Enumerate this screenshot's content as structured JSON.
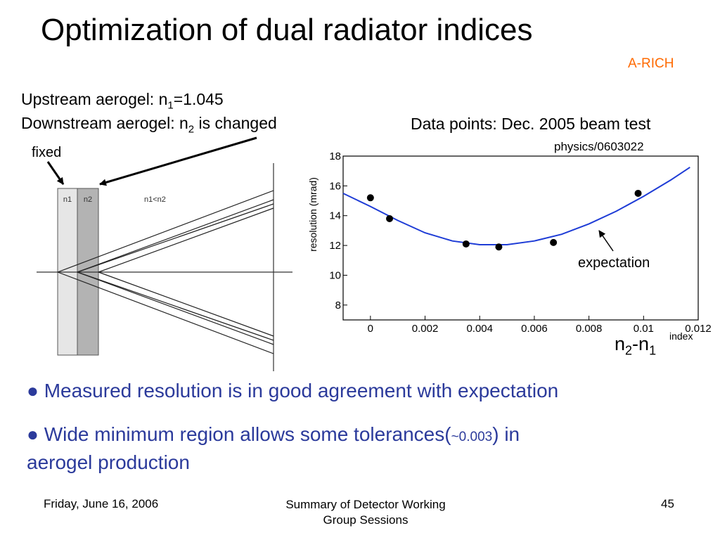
{
  "slide": {
    "title": "Optimization of dual radiator indices",
    "tag": "A-RICH",
    "upstream_prefix": "Upstream aerogel: n",
    "upstream_sub": "1",
    "upstream_value": "=1.045",
    "downstream_prefix": "Downstream aerogel: n",
    "downstream_sub": "2",
    "downstream_suffix": " is changed",
    "data_points": "Data points: Dec. 2005 beam test",
    "arxiv": "physics/0603022",
    "fixed": "fixed",
    "diagram": {
      "n1": "n1",
      "n2": "n2",
      "relation": "n1<n2"
    },
    "axis_n_label": {
      "a": "n",
      "a_sub": "2",
      "b": "-n",
      "b_sub": "1"
    },
    "bullets": {
      "b1": "Measured resolution is in good agreement with expectation",
      "b2_start": "Wide minimum region allows some tolerances(",
      "b2_small": "~0.003",
      "b2_end": ") in",
      "b2_cont": "aerogel production",
      "marker": "●"
    },
    "footer": {
      "date": "Friday, June 16, 2006",
      "center_line1": "Summary of Detector Working",
      "center_line2": "Group  Sessions",
      "page": "45"
    },
    "colors": {
      "bullet_text": "#2b3a9b",
      "tag": "#ff6a00",
      "curve": "#1e3cd6"
    }
  },
  "chart_data": {
    "type": "scatter",
    "xlabel": "index",
    "ylabel": "resolution (mrad)",
    "xlim": [
      -0.001,
      0.012
    ],
    "ylim": [
      7,
      18
    ],
    "xticks": [
      "0",
      "0.002",
      "0.004",
      "0.006",
      "0.008",
      "0.01",
      "0.012"
    ],
    "xtick_values": [
      0,
      0.002,
      0.004,
      0.006,
      0.008,
      0.01,
      0.012
    ],
    "yticks": [
      "8",
      "10",
      "12",
      "14",
      "16",
      "18"
    ],
    "ytick_values": [
      8,
      10,
      12,
      14,
      16,
      18
    ],
    "points": {
      "x": [
        0,
        0.0007,
        0.0035,
        0.0047,
        0.0067,
        0.0098
      ],
      "y": [
        15.2,
        13.8,
        12.1,
        11.9,
        12.2,
        15.5
      ]
    },
    "expectation_curve": {
      "name": "expectation",
      "x": [
        -0.001,
        0,
        0.001,
        0.002,
        0.003,
        0.004,
        0.005,
        0.006,
        0.007,
        0.008,
        0.009,
        0.01,
        0.011,
        0.0117
      ],
      "y": [
        15.5,
        14.62,
        13.68,
        12.85,
        12.3,
        12.05,
        12.05,
        12.3,
        12.75,
        13.45,
        14.3,
        15.3,
        16.4,
        17.25
      ]
    },
    "annotation": "expectation",
    "grid": false
  }
}
